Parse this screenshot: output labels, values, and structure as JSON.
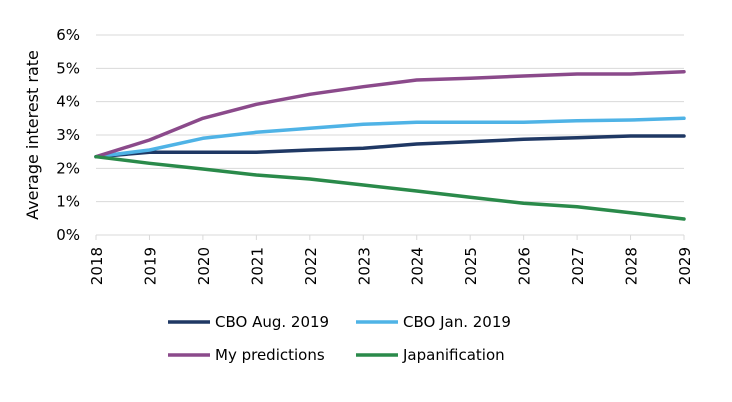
{
  "chart_data": {
    "type": "line",
    "title": "",
    "xlabel": "",
    "ylabel": "Average interest rate",
    "ylim": [
      0,
      6
    ],
    "y_ticks": [
      0,
      1,
      2,
      3,
      4,
      5,
      6
    ],
    "y_tick_labels": [
      "0%",
      "1%",
      "2%",
      "3%",
      "4%",
      "5%",
      "6%"
    ],
    "x": [
      "2018",
      "2019",
      "2020",
      "2021",
      "2022",
      "2023",
      "2024",
      "2025",
      "2026",
      "2027",
      "2028",
      "2029"
    ],
    "grid": "horizontal",
    "legend_position": "bottom",
    "series": [
      {
        "name": "CBO Aug. 2019",
        "color": "#1f3864",
        "values": [
          2.35,
          2.48,
          2.48,
          2.48,
          2.55,
          2.6,
          2.73,
          2.8,
          2.87,
          2.92,
          2.97,
          2.97
        ]
      },
      {
        "name": "CBO Jan. 2019",
        "color": "#4fb3e6",
        "values": [
          2.35,
          2.55,
          2.9,
          3.08,
          3.2,
          3.32,
          3.38,
          3.38,
          3.38,
          3.43,
          3.45,
          3.5
        ]
      },
      {
        "name": "My predictions",
        "color": "#8b4a8b",
        "values": [
          2.35,
          2.85,
          3.5,
          3.92,
          4.22,
          4.45,
          4.65,
          4.7,
          4.77,
          4.83,
          4.83,
          4.9
        ]
      },
      {
        "name": "Japanification",
        "color": "#2a8a4a",
        "values": [
          2.35,
          2.15,
          1.98,
          1.8,
          1.68,
          1.5,
          1.32,
          1.13,
          0.95,
          0.85,
          0.67,
          0.48
        ]
      }
    ]
  }
}
